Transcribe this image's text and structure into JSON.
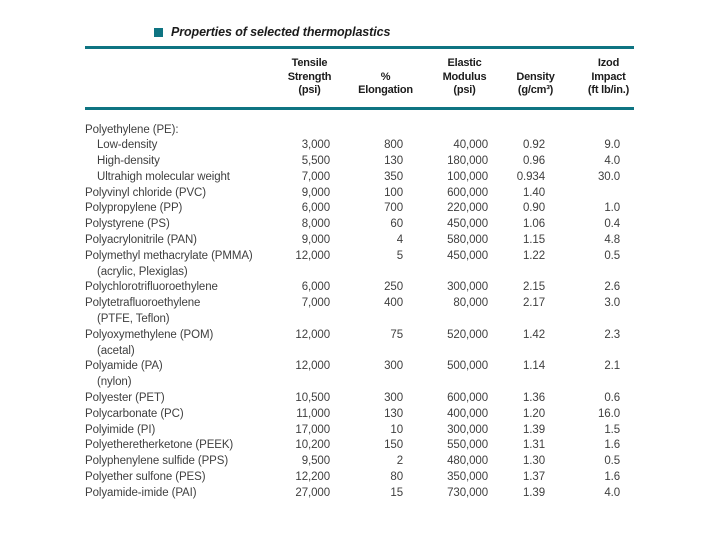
{
  "page": {
    "background": "#ffffff",
    "colors": {
      "accent": "#0e7482",
      "heading_text": "#1c1c1c",
      "body_text": "#3f3f3f"
    },
    "bullet_icon": "teal-square"
  },
  "chart_data": {
    "type": "table",
    "title": "Properties of selected thermoplastics",
    "column_headers": [
      {
        "lines": [
          "Tensile",
          "Strength",
          "(psi)"
        ]
      },
      {
        "lines": [
          "%",
          "Elongation"
        ]
      },
      {
        "lines": [
          "Elastic",
          "Modulus",
          "(psi)"
        ]
      },
      {
        "lines": [
          "Density",
          "(g/cm³)"
        ]
      },
      {
        "lines": [
          "Izod",
          "Impact",
          "(ft lb/in.)"
        ]
      }
    ],
    "rows": [
      {
        "material": "Polyethylene (PE):",
        "indent": 0,
        "values": [
          "",
          "",
          "",
          "",
          ""
        ]
      },
      {
        "material": "Low-density",
        "indent": 1,
        "values": [
          "3,000",
          "800",
          "40,000",
          "0.92",
          "9.0"
        ]
      },
      {
        "material": "High-density",
        "indent": 1,
        "values": [
          "5,500",
          "130",
          "180,000",
          "0.96",
          "4.0"
        ]
      },
      {
        "material": "Ultrahigh molecular weight",
        "indent": 1,
        "values": [
          "7,000",
          "350",
          "100,000",
          "0.934",
          "30.0"
        ]
      },
      {
        "material": "Polyvinyl chloride (PVC)",
        "indent": 0,
        "values": [
          "9,000",
          "100",
          "600,000",
          "1.40",
          ""
        ]
      },
      {
        "material": "Polypropylene (PP)",
        "indent": 0,
        "values": [
          "6,000",
          "700",
          "220,000",
          "0.90",
          "1.0"
        ]
      },
      {
        "material": "Polystyrene (PS)",
        "indent": 0,
        "values": [
          "8,000",
          "60",
          "450,000",
          "1.06",
          "0.4"
        ]
      },
      {
        "material": "Polyacrylonitrile (PAN)",
        "indent": 0,
        "values": [
          "9,000",
          "4",
          "580,000",
          "1.15",
          "4.8"
        ]
      },
      {
        "material": "Polymethyl methacrylate (PMMA)",
        "sub": "(acrylic, Plexiglas)",
        "indent": 0,
        "values": [
          "12,000",
          "5",
          "450,000",
          "1.22",
          "0.5"
        ]
      },
      {
        "material": "Polychlorotrifluoroethylene",
        "indent": 0,
        "values": [
          "6,000",
          "250",
          "300,000",
          "2.15",
          "2.6"
        ]
      },
      {
        "material": "Polytetrafluoroethylene",
        "sub": "(PTFE, Teflon)",
        "indent": 0,
        "values": [
          "7,000",
          "400",
          "80,000",
          "2.17",
          "3.0"
        ]
      },
      {
        "material": "Polyoxymethylene (POM)",
        "sub": "(acetal)",
        "indent": 0,
        "values": [
          "12,000",
          "75",
          "520,000",
          "1.42",
          "2.3"
        ]
      },
      {
        "material": "Polyamide (PA)",
        "sub": "(nylon)",
        "indent": 0,
        "values": [
          "12,000",
          "300",
          "500,000",
          "1.14",
          "2.1"
        ]
      },
      {
        "material": "Polyester (PET)",
        "indent": 0,
        "values": [
          "10,500",
          "300",
          "600,000",
          "1.36",
          "0.6"
        ]
      },
      {
        "material": "Polycarbonate (PC)",
        "indent": 0,
        "values": [
          "11,000",
          "130",
          "400,000",
          "1.20",
          "16.0"
        ]
      },
      {
        "material": "Polyimide (PI)",
        "indent": 0,
        "values": [
          "17,000",
          "10",
          "300,000",
          "1.39",
          "1.5"
        ]
      },
      {
        "material": "Polyetheretherketone (PEEK)",
        "indent": 0,
        "values": [
          "10,200",
          "150",
          "550,000",
          "1.31",
          "1.6"
        ]
      },
      {
        "material": "Polyphenylene sulfide (PPS)",
        "indent": 0,
        "values": [
          "9,500",
          "2",
          "480,000",
          "1.30",
          "0.5"
        ]
      },
      {
        "material": "Polyether sulfone (PES)",
        "indent": 0,
        "values": [
          "12,200",
          "80",
          "350,000",
          "1.37",
          "1.6"
        ]
      },
      {
        "material": "Polyamide-imide (PAI)",
        "indent": 0,
        "values": [
          "27,000",
          "15",
          "730,000",
          "1.39",
          "4.0"
        ]
      }
    ]
  }
}
